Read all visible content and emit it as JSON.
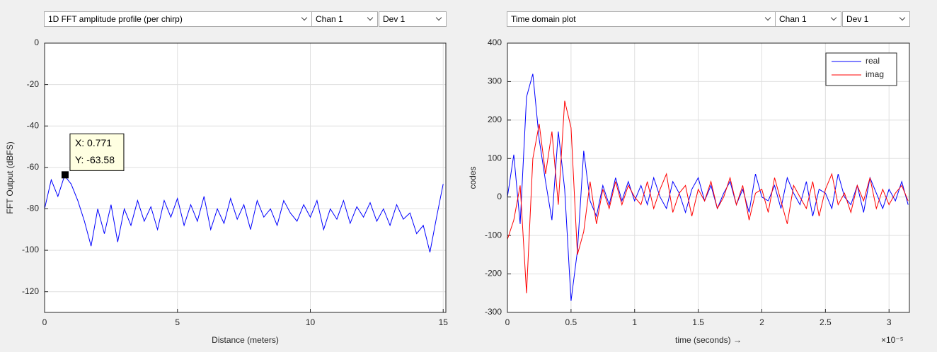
{
  "controls": {
    "left": [
      "1D FFT amplitude profile (per chirp)",
      "Chan 1",
      "Dev 1"
    ],
    "right": [
      "Time domain plot",
      "Chan 1",
      "Dev 1"
    ]
  },
  "chart_data": [
    {
      "type": "line",
      "xlabel": "Distance (meters)",
      "ylabel": "FFT Output (dBFS)",
      "xlim": [
        0,
        15.1
      ],
      "ylim": [
        -130,
        0
      ],
      "xticks": [
        0,
        5,
        10,
        15
      ],
      "yticks": [
        0,
        -20,
        -40,
        -60,
        -80,
        -100,
        -120
      ],
      "grid": true,
      "x": [
        0,
        0.25,
        0.5,
        0.75,
        1,
        1.25,
        1.5,
        1.75,
        2,
        2.25,
        2.5,
        2.75,
        3,
        3.25,
        3.5,
        3.75,
        4,
        4.25,
        4.5,
        4.75,
        5,
        5.25,
        5.5,
        5.75,
        6,
        6.25,
        6.5,
        6.75,
        7,
        7.25,
        7.5,
        7.75,
        8,
        8.25,
        8.5,
        8.75,
        9,
        9.25,
        9.5,
        9.75,
        10,
        10.25,
        10.5,
        10.75,
        11,
        11.25,
        11.5,
        11.75,
        12,
        12.25,
        12.5,
        12.75,
        13,
        13.25,
        13.5,
        13.75,
        14,
        14.25,
        14.5,
        14.75,
        15
      ],
      "series": [
        {
          "color": "#0000ff",
          "values": [
            -80,
            -66,
            -74,
            -64,
            -68,
            -76,
            -86,
            -98,
            -80,
            -92,
            -78,
            -96,
            -80,
            -88,
            -76,
            -86,
            -79,
            -90,
            -76,
            -84,
            -75,
            -88,
            -78,
            -86,
            -74,
            -90,
            -80,
            -87,
            -75,
            -85,
            -78,
            -90,
            -76,
            -84,
            -80,
            -88,
            -76,
            -82,
            -86,
            -78,
            -84,
            -76,
            -90,
            -80,
            -85,
            -76,
            -87,
            -79,
            -84,
            -77,
            -86,
            -80,
            -88,
            -78,
            -85,
            -82,
            -92,
            -88,
            -101,
            -84,
            -68
          ]
        }
      ],
      "datatip": {
        "x": 0.771,
        "y": -63.58,
        "lines": [
          "X: 0.771",
          "Y: -63.58"
        ]
      }
    },
    {
      "type": "line",
      "xlabel": "time  (seconds) →",
      "ylabel": "codes",
      "x_exponent_label": "×10⁻⁵",
      "xlim": [
        0,
        3.16
      ],
      "ylim": [
        -300,
        400
      ],
      "xticks": [
        0,
        0.5,
        1,
        1.5,
        2,
        2.5,
        3
      ],
      "yticks": [
        -300,
        -200,
        -100,
        0,
        100,
        200,
        300,
        400
      ],
      "grid": true,
      "legend": "northeast",
      "x": [
        0,
        0.05,
        0.1,
        0.15,
        0.2,
        0.25,
        0.3,
        0.35,
        0.4,
        0.45,
        0.5,
        0.55,
        0.6,
        0.65,
        0.7,
        0.75,
        0.8,
        0.85,
        0.9,
        0.95,
        1,
        1.05,
        1.1,
        1.15,
        1.2,
        1.25,
        1.3,
        1.35,
        1.4,
        1.45,
        1.5,
        1.55,
        1.6,
        1.65,
        1.7,
        1.75,
        1.8,
        1.85,
        1.9,
        1.95,
        2,
        2.05,
        2.1,
        2.15,
        2.2,
        2.25,
        2.3,
        2.35,
        2.4,
        2.45,
        2.5,
        2.55,
        2.6,
        2.65,
        2.7,
        2.75,
        2.8,
        2.85,
        2.9,
        2.95,
        3,
        3.05,
        3.1,
        3.15
      ],
      "series": [
        {
          "name": "real",
          "color": "#0000ff",
          "values": [
            0,
            110,
            -70,
            260,
            320,
            150,
            40,
            -60,
            170,
            20,
            -270,
            -140,
            120,
            -10,
            -50,
            30,
            -20,
            50,
            -10,
            40,
            -10,
            30,
            -20,
            50,
            0,
            -30,
            40,
            10,
            -40,
            20,
            50,
            -10,
            30,
            -30,
            10,
            40,
            -20,
            20,
            -40,
            60,
            0,
            -10,
            30,
            -30,
            50,
            10,
            -20,
            40,
            -50,
            20,
            10,
            -30,
            60,
            0,
            -20,
            30,
            -40,
            50,
            10,
            -30,
            20,
            -10,
            40,
            -20
          ]
        },
        {
          "name": "imag",
          "color": "#ff0000",
          "values": [
            -110,
            -60,
            30,
            -250,
            100,
            190,
            60,
            170,
            -20,
            250,
            180,
            -150,
            -90,
            40,
            -70,
            20,
            -30,
            40,
            -20,
            30,
            0,
            -20,
            40,
            -30,
            20,
            60,
            -40,
            10,
            30,
            -50,
            20,
            -10,
            40,
            -30,
            0,
            50,
            -20,
            30,
            -60,
            10,
            20,
            -40,
            50,
            -10,
            -70,
            30,
            0,
            -30,
            40,
            -50,
            20,
            60,
            -20,
            10,
            -40,
            30,
            -10,
            50,
            -30,
            20,
            -20,
            10,
            30,
            -10
          ]
        }
      ]
    }
  ]
}
